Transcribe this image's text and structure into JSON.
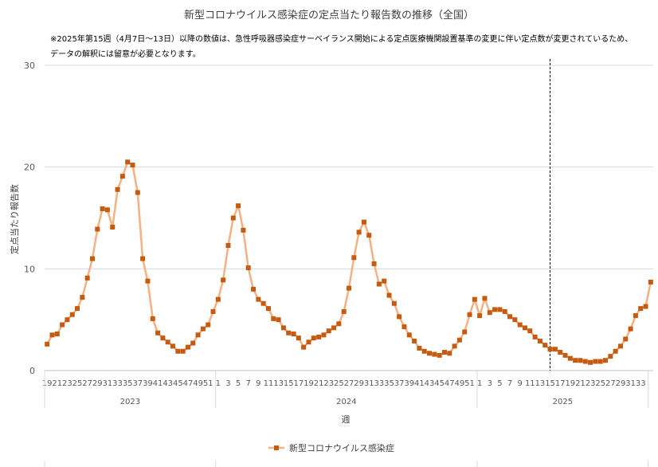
{
  "chart_data": {
    "type": "line",
    "title": "新型コロナウイルス感染症の定点当たり報告数の推移（全国）",
    "note_lines": [
      "※2025年第15週（4月7日～13日）以降の数値は、急性呼吸器感染症サーベイランス開始による定点医療機関設置基準の変更に伴い定点数が変更されているため、",
      "データの解釈には留意が必要となります。"
    ],
    "xlabel": "週",
    "ylabel": "定点当たり報告数",
    "ylim": [
      0,
      30
    ],
    "yticks": [
      "0",
      "10",
      "20",
      "30"
    ],
    "grid": true,
    "legend_position": "bottom",
    "color": "#C55A11",
    "line_color": "#F4B183",
    "years": [
      {
        "label": "2023",
        "start_week": 19,
        "end_week": 52
      },
      {
        "label": "2024",
        "start_week": 1,
        "end_week": 52
      },
      {
        "label": "2025",
        "start_week": 1,
        "end_week": 34
      }
    ],
    "marker_week": {
      "year": "2025",
      "week": 15
    },
    "x_tick_labels": {
      "2023": [
        "19",
        "21",
        "23",
        "25",
        "27",
        "29",
        "31",
        "33",
        "35",
        "37",
        "39",
        "41",
        "43",
        "45",
        "47",
        "49",
        "51"
      ],
      "2024": [
        "1",
        "3",
        "5",
        "7",
        "9",
        "11",
        "13",
        "15",
        "17",
        "19",
        "21",
        "23",
        "25",
        "27",
        "29",
        "31",
        "33",
        "35",
        "37",
        "39",
        "41",
        "43",
        "45",
        "47",
        "49",
        "51"
      ],
      "2025": [
        "1",
        "3",
        "5",
        "7",
        "9",
        "11",
        "13",
        "15",
        "17",
        "19",
        "21",
        "23",
        "25",
        "27",
        "29",
        "31",
        "33"
      ]
    },
    "series": [
      {
        "name": "新型コロナウイルス感染症",
        "values": [
          2.6,
          3.5,
          3.6,
          4.5,
          5.0,
          5.5,
          6.1,
          7.2,
          9.1,
          11.0,
          13.9,
          15.9,
          15.8,
          14.1,
          17.8,
          19.1,
          20.5,
          20.2,
          17.5,
          11.0,
          8.8,
          5.1,
          3.7,
          3.2,
          2.8,
          2.4,
          1.9,
          1.9,
          2.3,
          2.7,
          3.5,
          4.1,
          4.5,
          5.8,
          7.0,
          8.9,
          12.3,
          15.0,
          16.2,
          13.8,
          10.1,
          8.0,
          7.0,
          6.6,
          6.1,
          5.1,
          5.0,
          4.2,
          3.7,
          3.6,
          3.2,
          2.3,
          2.8,
          3.2,
          3.3,
          3.5,
          3.9,
          4.2,
          4.6,
          5.8,
          8.1,
          11.1,
          13.6,
          14.6,
          13.3,
          10.5,
          8.5,
          8.8,
          7.4,
          6.6,
          5.3,
          4.3,
          3.5,
          2.9,
          2.2,
          1.9,
          1.7,
          1.6,
          1.5,
          1.8,
          1.7,
          2.4,
          3.0,
          3.8,
          5.5,
          7.0,
          5.4,
          7.1,
          5.7,
          6.0,
          6.0,
          5.8,
          5.3,
          5.0,
          4.5,
          4.2,
          3.9,
          3.3,
          2.9,
          2.5,
          2.1,
          2.1,
          1.8,
          1.5,
          1.2,
          1.0,
          1.0,
          0.9,
          0.8,
          0.9,
          0.9,
          1.0,
          1.4,
          1.9,
          2.4,
          3.1,
          4.1,
          5.4,
          6.1,
          6.3,
          8.7
        ]
      }
    ]
  }
}
